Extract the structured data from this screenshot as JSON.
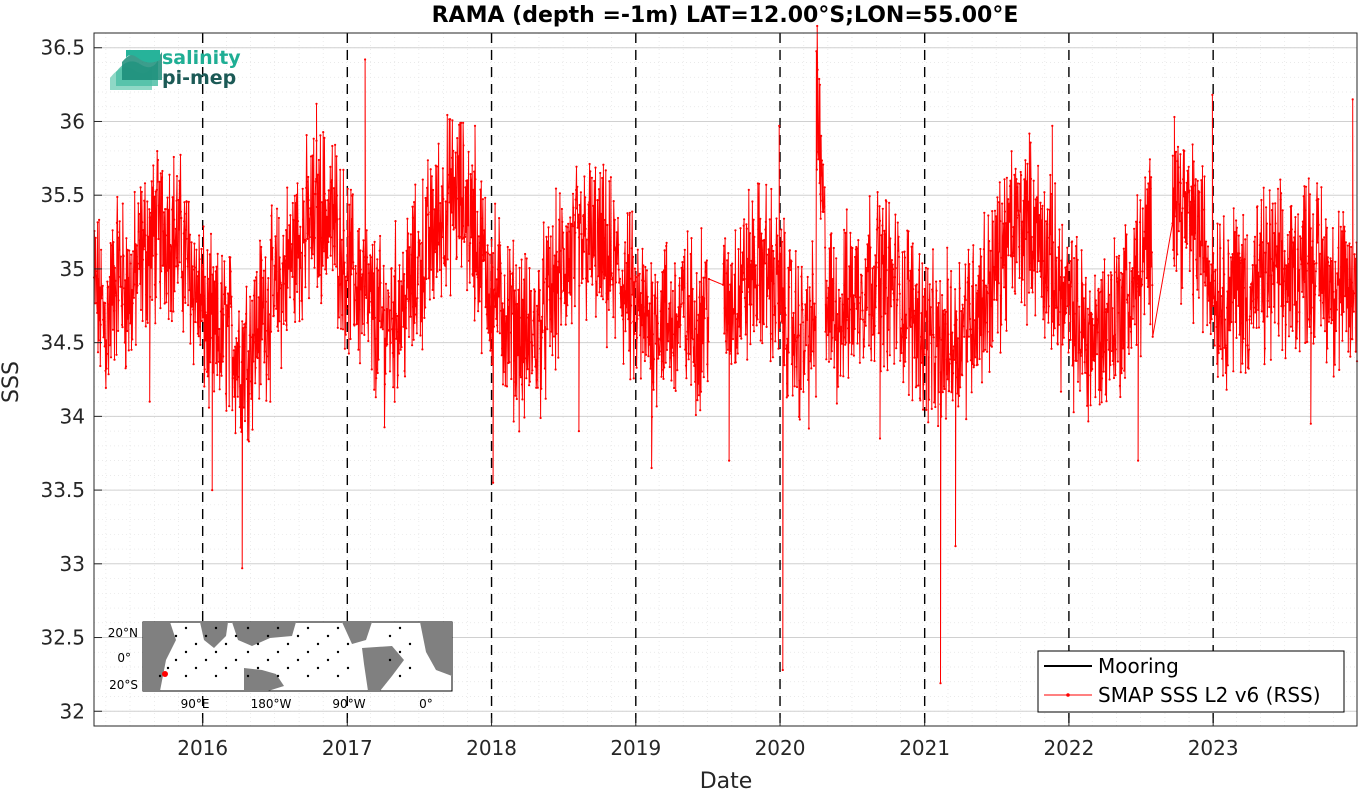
{
  "logo": {
    "line1": "salinity",
    "line2": "pi-mep"
  },
  "inset_map": {
    "lat_labels": [
      "20°N",
      "0°",
      "20°S"
    ],
    "lon_labels": [
      "90°E",
      "180°W",
      "90°W",
      "0°"
    ]
  },
  "colors": {
    "smap": "#ff0000",
    "mooring": "#000000",
    "grid": "#d9d9d9"
  },
  "chart_data": {
    "type": "line",
    "title": "RAMA (depth =-1m) LAT=12.00°S;LON=55.00°E",
    "xlabel": "Date",
    "ylabel": "SSS",
    "xlim": [
      "2015-04-01",
      "2023-12-31"
    ],
    "ylim": [
      31.9,
      36.6
    ],
    "x_ticks": [
      "2016",
      "2017",
      "2018",
      "2019",
      "2020",
      "2021",
      "2022",
      "2023"
    ],
    "y_ticks": [
      "32",
      "32.5",
      "33",
      "33.5",
      "34",
      "34.5",
      "35",
      "35.5",
      "36",
      "36.5"
    ],
    "grid": true,
    "legend_position": "bottom-right",
    "year_markers": [
      "2016-01-01",
      "2017-01-01",
      "2018-01-01",
      "2019-01-01",
      "2020-01-01",
      "2021-01-01",
      "2022-01-01",
      "2023-01-01"
    ],
    "series": [
      {
        "name": "Mooring",
        "points": []
      },
      {
        "name": "SMAP SSS L2 v6 (RSS)",
        "points": [
          [
            "2015-04-01",
            34.9
          ],
          [
            "2015-05-01",
            34.6
          ],
          [
            "2015-06-01",
            35.0
          ],
          [
            "2015-07-01",
            34.8
          ],
          [
            "2015-08-01",
            35.1
          ],
          [
            "2015-09-01",
            35.2
          ],
          [
            "2015-10-01",
            35.3
          ],
          [
            "2015-11-01",
            35.2
          ],
          [
            "2015-12-01",
            35.0
          ],
          [
            "2016-01-01",
            34.7
          ],
          [
            "2016-02-01",
            34.5
          ],
          [
            "2016-03-01",
            34.6
          ],
          [
            "2016-04-01",
            34.4
          ],
          [
            "2016-05-01",
            34.5
          ],
          [
            "2016-06-01",
            34.7
          ],
          [
            "2016-07-01",
            34.8
          ],
          [
            "2016-08-01",
            35.0
          ],
          [
            "2016-09-01",
            35.2
          ],
          [
            "2016-10-01",
            35.3
          ],
          [
            "2016-11-01",
            35.4
          ],
          [
            "2016-12-01",
            35.3
          ],
          [
            "2017-01-01",
            35.0
          ],
          [
            "2017-02-01",
            34.9
          ],
          [
            "2017-03-01",
            34.7
          ],
          [
            "2017-04-01",
            34.6
          ],
          [
            "2017-05-01",
            34.7
          ],
          [
            "2017-06-01",
            34.8
          ],
          [
            "2017-07-01",
            35.0
          ],
          [
            "2017-08-01",
            35.2
          ],
          [
            "2017-09-01",
            35.4
          ],
          [
            "2017-10-01",
            35.5
          ],
          [
            "2017-11-01",
            35.4
          ],
          [
            "2017-12-01",
            35.1
          ],
          [
            "2018-01-01",
            34.9
          ],
          [
            "2018-02-01",
            34.7
          ],
          [
            "2018-03-01",
            34.6
          ],
          [
            "2018-04-01",
            34.5
          ],
          [
            "2018-05-01",
            34.6
          ],
          [
            "2018-06-01",
            34.8
          ],
          [
            "2018-07-01",
            35.0
          ],
          [
            "2018-08-01",
            35.1
          ],
          [
            "2018-09-01",
            35.2
          ],
          [
            "2018-10-01",
            35.1
          ],
          [
            "2018-11-01",
            35.0
          ],
          [
            "2018-12-01",
            34.9
          ],
          [
            "2019-01-01",
            34.7
          ],
          [
            "2019-02-01",
            34.6
          ],
          [
            "2019-03-01",
            34.7
          ],
          [
            "2019-04-01",
            34.6
          ],
          [
            "2019-05-01",
            34.7
          ],
          [
            "2019-06-01",
            34.6
          ],
          [
            "2019-07-01",
            34.8
          ],
          [
            "2019-08-01",
            34.6
          ],
          [
            "2019-09-01",
            34.8
          ],
          [
            "2019-10-01",
            34.9
          ],
          [
            "2019-11-01",
            35.0
          ],
          [
            "2019-12-01",
            35.0
          ],
          [
            "2020-01-01",
            34.8
          ],
          [
            "2020-02-01",
            34.6
          ],
          [
            "2020-03-01",
            34.5
          ],
          [
            "2020-04-01",
            34.6
          ],
          [
            "2020-05-01",
            34.7
          ],
          [
            "2020-06-01",
            34.7
          ],
          [
            "2020-07-01",
            34.8
          ],
          [
            "2020-08-01",
            34.9
          ],
          [
            "2020-09-01",
            35.0
          ],
          [
            "2020-10-01",
            34.9
          ],
          [
            "2020-11-01",
            34.8
          ],
          [
            "2020-12-01",
            34.7
          ],
          [
            "2021-01-01",
            34.6
          ],
          [
            "2021-02-01",
            34.4
          ],
          [
            "2021-03-01",
            34.5
          ],
          [
            "2021-04-01",
            34.6
          ],
          [
            "2021-05-01",
            34.7
          ],
          [
            "2021-06-01",
            34.8
          ],
          [
            "2021-07-01",
            35.0
          ],
          [
            "2021-08-01",
            35.2
          ],
          [
            "2021-09-01",
            35.3
          ],
          [
            "2021-10-01",
            35.3
          ],
          [
            "2021-11-01",
            35.1
          ],
          [
            "2021-12-01",
            34.9
          ],
          [
            "2022-01-01",
            34.7
          ],
          [
            "2022-02-01",
            34.6
          ],
          [
            "2022-03-01",
            34.5
          ],
          [
            "2022-04-01",
            34.6
          ],
          [
            "2022-05-01",
            34.7
          ],
          [
            "2022-06-01",
            34.8
          ],
          [
            "2022-07-01",
            35.0
          ],
          [
            "2022-08-01",
            35.2
          ],
          [
            "2022-09-01",
            35.7
          ],
          [
            "2022-10-01",
            35.5
          ],
          [
            "2022-11-01",
            35.3
          ],
          [
            "2022-12-01",
            35.2
          ],
          [
            "2023-01-01",
            34.9
          ],
          [
            "2023-02-01",
            34.8
          ],
          [
            "2023-03-01",
            34.9
          ],
          [
            "2023-04-01",
            34.8
          ],
          [
            "2023-05-01",
            34.9
          ],
          [
            "2023-06-01",
            35.0
          ],
          [
            "2023-07-01",
            34.9
          ],
          [
            "2023-08-01",
            35.0
          ],
          [
            "2023-09-01",
            35.1
          ],
          [
            "2023-10-01",
            35.0
          ],
          [
            "2023-11-01",
            34.9
          ],
          [
            "2023-12-01",
            34.8
          ],
          [
            "2015-08-20",
            34.1
          ],
          [
            "2016-01-25",
            33.5
          ],
          [
            "2016-04-10",
            32.97
          ],
          [
            "2016-10-15",
            36.12
          ],
          [
            "2017-02-15",
            36.42
          ],
          [
            "2017-11-20",
            35.97
          ],
          [
            "2018-01-05",
            33.55
          ],
          [
            "2018-08-10",
            33.9
          ],
          [
            "2019-02-10",
            33.65
          ],
          [
            "2019-08-25",
            33.7
          ],
          [
            "2019-12-30",
            35.97
          ],
          [
            "2020-01-08",
            32.28
          ],
          [
            "2020-04-01",
            36.26
          ],
          [
            "2020-09-10",
            33.85
          ],
          [
            "2021-02-10",
            32.19
          ],
          [
            "2021-03-20",
            33.12
          ],
          [
            "2021-11-20",
            35.97
          ],
          [
            "2022-06-25",
            33.7
          ],
          [
            "2022-09-25",
            36.03
          ],
          [
            "2022-12-30",
            36.18
          ],
          [
            "2023-09-05",
            33.95
          ],
          [
            "2023-12-20",
            36.15
          ]
        ]
      }
    ]
  }
}
